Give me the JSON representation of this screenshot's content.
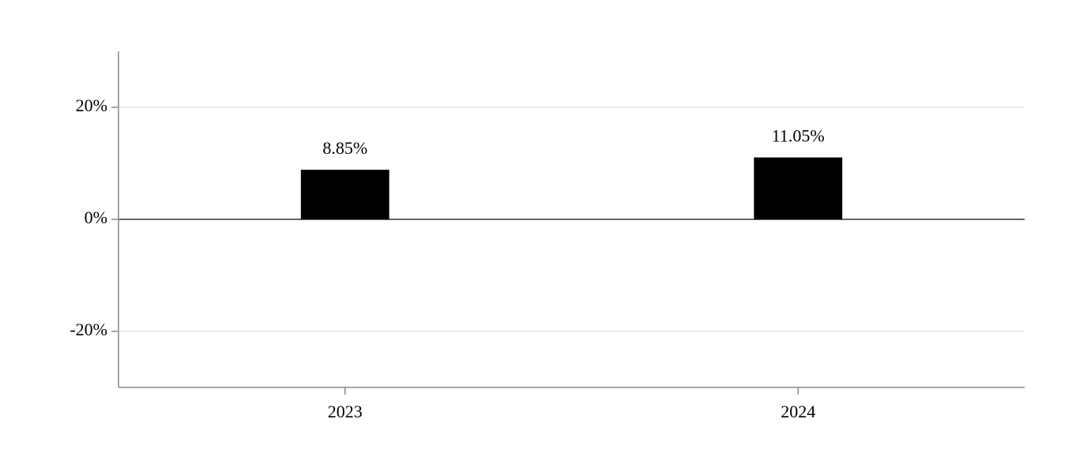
{
  "chart_data": {
    "type": "bar",
    "categories": [
      "2023",
      "2024"
    ],
    "values": [
      8.85,
      11.05
    ],
    "value_labels": [
      "8.85%",
      "11.05%"
    ],
    "color": "#000000",
    "ylim": [
      -30,
      30
    ],
    "yticks": [
      {
        "value": -20,
        "label": "-20%"
      },
      {
        "value": 0,
        "label": "0%"
      },
      {
        "value": 20,
        "label": "20%"
      }
    ],
    "grid": true
  }
}
